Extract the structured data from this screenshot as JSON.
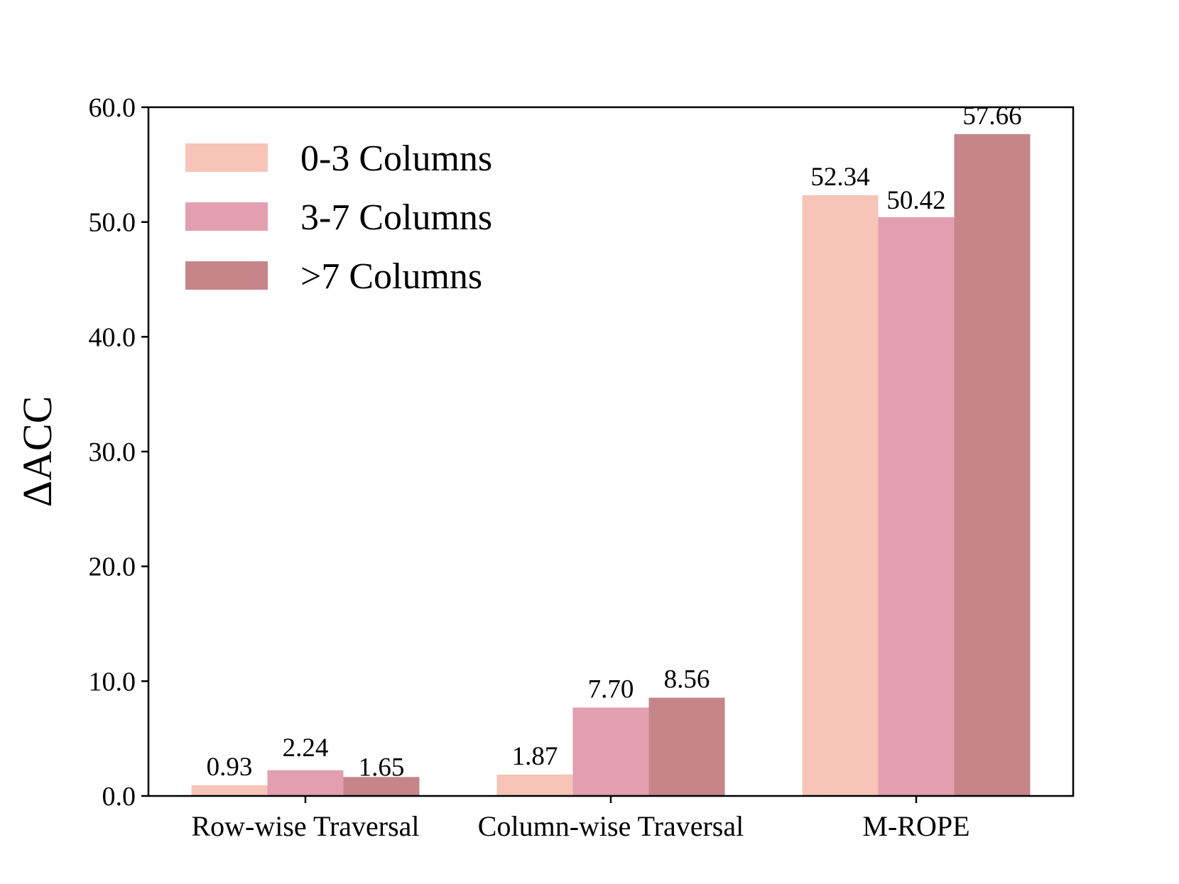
{
  "chart_data": {
    "type": "bar",
    "title": "",
    "xlabel": "",
    "ylabel": "ΔACC",
    "ylim": [
      0,
      60
    ],
    "yticks": [
      0,
      10,
      20,
      30,
      40,
      50,
      60
    ],
    "ytick_labels": [
      "0.0",
      "10.0",
      "20.0",
      "30.0",
      "40.0",
      "50.0",
      "60.0"
    ],
    "categories": [
      "Row-wise Traversal",
      "Column-wise Traversal",
      "M-ROPE"
    ],
    "series": [
      {
        "name": "0-3 Columns",
        "color": "#f7c4b8",
        "values": [
          0.93,
          1.87,
          52.34
        ],
        "labels": [
          "0.93",
          "1.87",
          "52.34"
        ]
      },
      {
        "name": "3-7 Columns",
        "color": "#e29fb0",
        "values": [
          2.24,
          7.7,
          50.42
        ],
        "labels": [
          "2.24",
          "7.70",
          "50.42"
        ]
      },
      {
        "name": ">7 Columns",
        "color": "#c58589",
        "values": [
          1.65,
          8.56,
          57.66
        ],
        "labels": [
          "1.65",
          "8.56",
          "57.66"
        ]
      }
    ],
    "legend_position": "top-left",
    "grid": false
  }
}
